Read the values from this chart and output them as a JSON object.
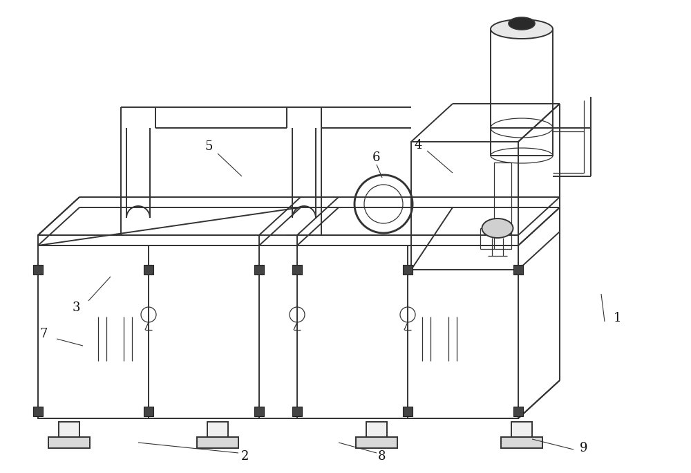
{
  "bg": "#ffffff",
  "lc": "#333333",
  "lw": 1.4,
  "tlw": 0.9,
  "fw": 10.0,
  "fh": 6.84
}
